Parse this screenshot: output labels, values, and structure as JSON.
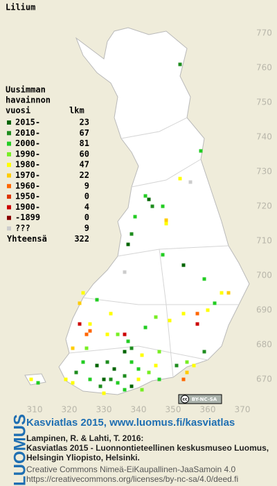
{
  "title": "Lilium",
  "legend": {
    "heading": [
      "Uusimman",
      "havainnon",
      "vuosi"
    ],
    "count_heading": "lkm",
    "entries": [
      {
        "label": "2015-",
        "count": 23,
        "color": "#006400"
      },
      {
        "label": "2010-",
        "count": 67,
        "color": "#1e8c1e"
      },
      {
        "label": "2000-",
        "count": 81,
        "color": "#22cc22"
      },
      {
        "label": "1990-",
        "count": 60,
        "color": "#77ee22"
      },
      {
        "label": "1980-",
        "count": 47,
        "color": "#ffff00"
      },
      {
        "label": "1970-",
        "count": 22,
        "color": "#ffcc00"
      },
      {
        "label": "1960-",
        "count": 9,
        "color": "#ff6600"
      },
      {
        "label": "1950-",
        "count": 0,
        "color": "#dd3300"
      },
      {
        "label": "1900-",
        "count": 4,
        "color": "#cc0000"
      },
      {
        "label": "-1899",
        "count": 0,
        "color": "#880000"
      },
      {
        "label": "???",
        "count": 9,
        "color": "#cccccc"
      }
    ],
    "total_label": "Yhteensä",
    "total": 322
  },
  "map": {
    "xticks": [
      310,
      320,
      330,
      340,
      350,
      360,
      370
    ],
    "yticks": [
      670,
      680,
      690,
      700,
      710,
      720,
      730,
      740,
      750,
      760,
      770
    ],
    "cells": [
      [
        352,
        761,
        1
      ],
      [
        358,
        736,
        2
      ],
      [
        355,
        727,
        10
      ],
      [
        352,
        728,
        4
      ],
      [
        343,
        722,
        0
      ],
      [
        344,
        720,
        1
      ],
      [
        342,
        723,
        2
      ],
      [
        347,
        720,
        2
      ],
      [
        339,
        717,
        2
      ],
      [
        348,
        715,
        4
      ],
      [
        348,
        716,
        5
      ],
      [
        338,
        712,
        1
      ],
      [
        337,
        709,
        0
      ],
      [
        347,
        706,
        2
      ],
      [
        353,
        703,
        0
      ],
      [
        336,
        701,
        10
      ],
      [
        359,
        699,
        2
      ],
      [
        364,
        695,
        4
      ],
      [
        366,
        695,
        5
      ],
      [
        362,
        692,
        2
      ],
      [
        360,
        690,
        4
      ],
      [
        357,
        689,
        6
      ],
      [
        357,
        686,
        8
      ],
      [
        353,
        689,
        4
      ],
      [
        349,
        687,
        4
      ],
      [
        345,
        688,
        3
      ],
      [
        342,
        685,
        2
      ],
      [
        336,
        683,
        8
      ],
      [
        334,
        683,
        3
      ],
      [
        331,
        683,
        4
      ],
      [
        326,
        684,
        6
      ],
      [
        325,
        683,
        6
      ],
      [
        323,
        686,
        8
      ],
      [
        326,
        686,
        4
      ],
      [
        323,
        692,
        5
      ],
      [
        324,
        695,
        4
      ],
      [
        328,
        693,
        2
      ],
      [
        332,
        689,
        4
      ],
      [
        337,
        681,
        2
      ],
      [
        338,
        679,
        1
      ],
      [
        336,
        678,
        0
      ],
      [
        338,
        675,
        2
      ],
      [
        341,
        677,
        4
      ],
      [
        346,
        678,
        3
      ],
      [
        351,
        674,
        1
      ],
      [
        354,
        675,
        3
      ],
      [
        356,
        674,
        4
      ],
      [
        359,
        678,
        1
      ],
      [
        353,
        670,
        6
      ],
      [
        354,
        672,
        5
      ],
      [
        330,
        670,
        0
      ],
      [
        332,
        670,
        1
      ],
      [
        334,
        669,
        2
      ],
      [
        329,
        668,
        1
      ],
      [
        336,
        667,
        2
      ],
      [
        340,
        670,
        4
      ],
      [
        343,
        672,
        3
      ],
      [
        326,
        670,
        2
      ],
      [
        322,
        672,
        1
      ],
      [
        321,
        669,
        4
      ],
      [
        319,
        670,
        4
      ],
      [
        324,
        675,
        2
      ],
      [
        328,
        674,
        0
      ],
      [
        309,
        670,
        4
      ],
      [
        311,
        669,
        2
      ],
      [
        321,
        679,
        5
      ],
      [
        325,
        679,
        3
      ],
      [
        331,
        675,
        1
      ],
      [
        333,
        673,
        0
      ],
      [
        340,
        673,
        2
      ],
      [
        345,
        674,
        4
      ],
      [
        336,
        671,
        1
      ],
      [
        338,
        668,
        0
      ],
      [
        341,
        667,
        3
      ],
      [
        346,
        670,
        2
      ],
      [
        330,
        666,
        4
      ]
    ]
  },
  "badge": {
    "cc": "cc",
    "text": "BY-NC-SA"
  },
  "footer": {
    "logo": "LUOMUS",
    "site": "Kasviatlas 2015, www.luomus.fi/kasviatlas",
    "citation": [
      "Lampinen, R. & Lahti, T. 2016:",
      "Kasviatlas 2015 - Luonnontieteellinen keskusmuseo Luomus,",
      "Helsingin Yliopisto, Helsinki."
    ],
    "license": [
      "Creative Commons Nimeä-EiKaupallinen-JaaSamoin 4.0",
      "https://creativecommons.org/licenses/by-nc-sa/4.0/deed.fi"
    ]
  }
}
